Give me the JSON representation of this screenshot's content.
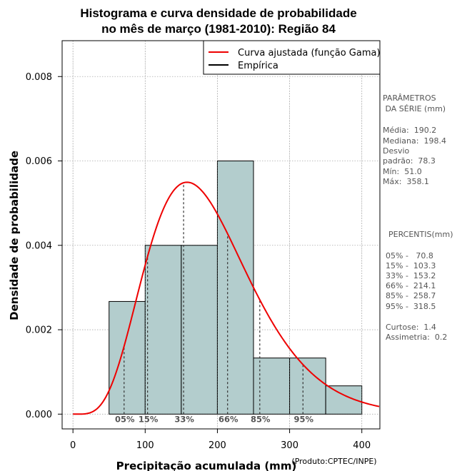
{
  "chart_data": {
    "type": "bar",
    "title": [
      "Histograma e curva densidade de probabilidade",
      "no mês de março (1981-2010): Região 84"
    ],
    "xlabel": "Precipitação acumulada (mm)",
    "ylabel": "Densidade de probabilidade",
    "credit": "(Produto:CPTEC/INPE)",
    "xlim": [
      -15,
      425
    ],
    "ylim": [
      -0.00035,
      0.00885
    ],
    "x_ticks": [
      0,
      100,
      200,
      300,
      400
    ],
    "y_ticks": [
      0.0,
      0.002,
      0.004,
      0.006,
      0.008
    ],
    "y_tick_labels": [
      "0.000",
      "0.002",
      "0.004",
      "0.006",
      "0.008"
    ],
    "grid": true,
    "bin_width": 50,
    "bins": [
      {
        "start": 50,
        "end": 100,
        "density": 0.00267
      },
      {
        "start": 100,
        "end": 150,
        "density": 0.004
      },
      {
        "start": 150,
        "end": 200,
        "density": 0.004
      },
      {
        "start": 200,
        "end": 250,
        "density": 0.006
      },
      {
        "start": 250,
        "end": 300,
        "density": 0.00133
      },
      {
        "start": 300,
        "end": 350,
        "density": 0.00133
      },
      {
        "start": 350,
        "end": 400,
        "density": 0.00067
      }
    ],
    "gamma_fit": {
      "shape": 5.9,
      "scale": 32.24
    },
    "legend": [
      {
        "label": "Curva ajustada (função Gama)",
        "color": "#ee0000"
      },
      {
        "label": "Empírica",
        "color": "#000000"
      }
    ],
    "percentile_markers": [
      {
        "label": "05%",
        "value": 70.8
      },
      {
        "label": "15%",
        "value": 103.3
      },
      {
        "label": "33%",
        "value": 153.2
      },
      {
        "label": "66%",
        "value": 214.1
      },
      {
        "label": "85%",
        "value": 258.7
      },
      {
        "label": "95%",
        "value": 318.5
      }
    ],
    "colors": {
      "bar_fill": "#b3cdcd",
      "curve": "#ee0000",
      "grid": "#aaaaaa",
      "side_text": "#555555"
    }
  },
  "side_panel": {
    "params_header": [
      "PARÂMETROS",
      " DA SÉRIE (mm)"
    ],
    "params": [
      "Média:  190.2",
      "Mediana:  198.4",
      "Desvio",
      "padrão:  78.3",
      "Mín:  51.0",
      "Máx:  358.1"
    ],
    "percentis_header": "PERCENTIS(mm)",
    "percentis": [
      "05% -   70.8",
      "15% -  103.3",
      "33% -  153.2",
      "66% -  214.1",
      "85% -  258.7",
      "95% -  318.5"
    ],
    "extra": [
      "Curtose:  1.4",
      "Assimetria:  0.2"
    ]
  }
}
